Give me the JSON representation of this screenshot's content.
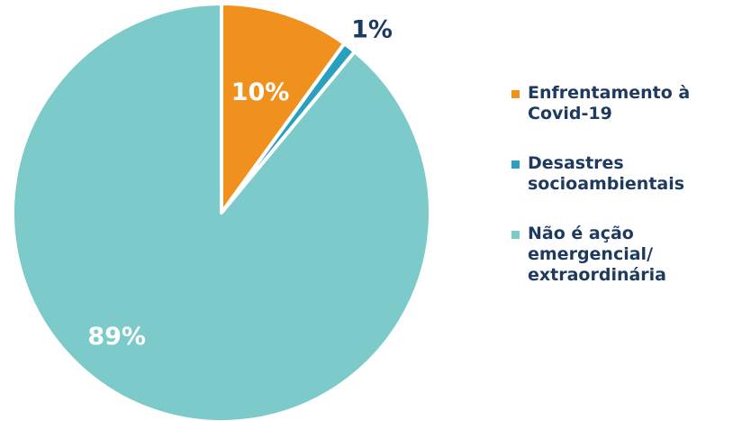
{
  "chart_data": {
    "type": "pie",
    "title": "",
    "slices": [
      {
        "label": "Enfrentamento à Covid-19",
        "value": 10,
        "display": "10%",
        "color": "#f0911e",
        "label_color": "#ffffff"
      },
      {
        "label": "Desastres socioambientais",
        "value": 1,
        "display": "1%",
        "color": "#2a9fbe",
        "label_color": "#1f3a5f"
      },
      {
        "label": "Não é ação emergencial/ extraordinária",
        "value": 89,
        "display": "89%",
        "color": "#7ccaca",
        "label_color": "#ffffff"
      }
    ],
    "legend_position": "right"
  }
}
